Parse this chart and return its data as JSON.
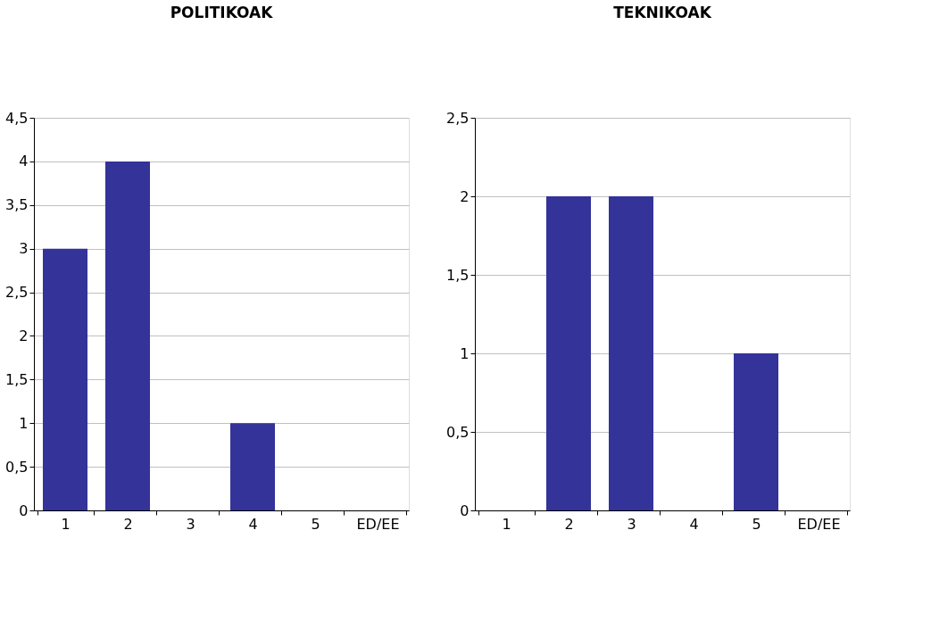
{
  "chart_data": [
    {
      "type": "bar",
      "title": "POLITIKOAK",
      "categories": [
        "1",
        "2",
        "3",
        "4",
        "5",
        "ED/EE"
      ],
      "values": [
        3,
        4,
        0,
        1,
        0,
        0
      ],
      "color": "#333399",
      "ylim": [
        0,
        4.5
      ],
      "yticks": [
        0,
        {
          "value": 0.5,
          "label": "0,5"
        },
        1,
        {
          "value": 1.5,
          "label": "1,5"
        },
        2,
        {
          "value": 2.5,
          "label": "2,5"
        },
        3,
        {
          "value": 3.5,
          "label": "3,5"
        },
        4,
        {
          "value": 4.5,
          "label": "4,5"
        }
      ],
      "grid": "y"
    },
    {
      "type": "bar",
      "title": "TEKNIKOAK",
      "categories": [
        "1",
        "2",
        "3",
        "4",
        "5",
        "ED/EE"
      ],
      "values": [
        0,
        2,
        2,
        0,
        1,
        0
      ],
      "color": "#333399",
      "ylim": [
        0,
        2.5
      ],
      "yticks": [
        0,
        {
          "value": 0.5,
          "label": "0,5"
        },
        1,
        {
          "value": 1.5,
          "label": "1,5"
        },
        2,
        {
          "value": 2.5,
          "label": "2,5"
        }
      ],
      "grid": "y"
    }
  ]
}
